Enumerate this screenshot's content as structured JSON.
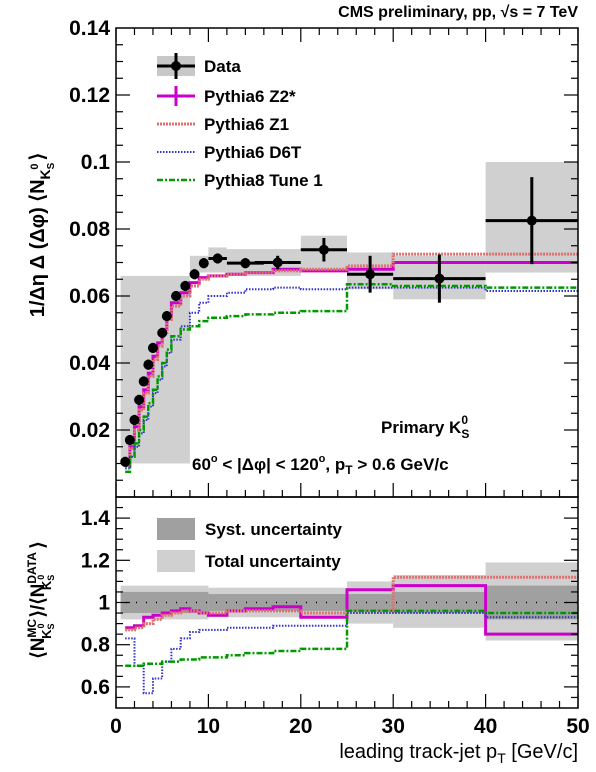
{
  "header": {
    "left": "CMS preliminary, pp, ",
    "sqrt": "√s",
    "right": " = 7 TeV"
  },
  "top_panel": {
    "ylabel": "1/Δη Δ (Δφ) ⟨N",
    "ylabel_sub": "K",
    "ylabel_sub2": "S",
    "ylabel_sup": "0",
    "ylabel_end": "⟩",
    "annotation_primary": "Primary K",
    "annotation_primary_sub": "S",
    "annotation_primary_sup": "0",
    "annotation_cut_1": "60",
    "annotation_cut_deg": "o",
    "annotation_cut_2": " < |Δφ| < 120",
    "annotation_cut_3": ", p",
    "annotation_cut_pt_sub": "T",
    "annotation_cut_4": " > 0.6 GeV/c",
    "legend": [
      "Data",
      "Pythia6 Z2*",
      "Pythia6 Z1",
      "Pythia6 D6T",
      "Pythia8 Tune 1"
    ]
  },
  "bottom_panel": {
    "ylabel_open": "⟨N",
    "ylabel_mc": "MC",
    "ylabel_k": "K",
    "ylabel_s": "S",
    "ylabel_zero": "0",
    "ylabel_mid": "⟩/⟨N",
    "ylabel_data": "DATA",
    "ylabel_close": "⟩",
    "legend": [
      "Syst. uncertainty",
      "Total uncertainty"
    ]
  },
  "xlabel": "leading track-jet p",
  "xlabel_sub": "T",
  "xlabel_unit": " [GeV/c]",
  "colors": {
    "data": "#000000",
    "z2star": "#cc00cc",
    "z1": "#e07070",
    "d6t": "#3030cc",
    "tune1": "#009900",
    "syst": "#a0a0a0",
    "total": "#d0d0d0"
  },
  "chart_data": [
    {
      "type": "scatter",
      "xlim": [
        0,
        50
      ],
      "ylim": [
        0,
        0.14
      ],
      "yticks": [
        "0.02",
        "0.04",
        "0.06",
        "0.08",
        "0.1",
        "0.12",
        "0.14"
      ],
      "ytick_values": [
        0.02,
        0.04,
        0.06,
        0.08,
        0.1,
        0.12,
        0.14
      ],
      "data_points": [
        {
          "x": 1.0,
          "y": 0.0105,
          "xerr": 0.5,
          "yerr": 0.0015
        },
        {
          "x": 1.5,
          "y": 0.017,
          "xerr": 0.25,
          "yerr": 0.0015
        },
        {
          "x": 2.0,
          "y": 0.023,
          "xerr": 0.25,
          "yerr": 0.0015
        },
        {
          "x": 2.5,
          "y": 0.029,
          "xerr": 0.25,
          "yerr": 0.0015
        },
        {
          "x": 3.0,
          "y": 0.0345,
          "xerr": 0.25,
          "yerr": 0.0015
        },
        {
          "x": 3.5,
          "y": 0.0395,
          "xerr": 0.25,
          "yerr": 0.0015
        },
        {
          "x": 4.0,
          "y": 0.0445,
          "xerr": 0.25,
          "yerr": 0.0015
        },
        {
          "x": 5.0,
          "y": 0.049,
          "xerr": 0.5,
          "yerr": 0.0015
        },
        {
          "x": 5.5,
          "y": 0.054,
          "xerr": 0.5,
          "yerr": 0.0015
        },
        {
          "x": 6.5,
          "y": 0.06,
          "xerr": 0.5,
          "yerr": 0.0015
        },
        {
          "x": 7.5,
          "y": 0.063,
          "xerr": 0.5,
          "yerr": 0.0015
        },
        {
          "x": 8.5,
          "y": 0.0665,
          "xerr": 0.5,
          "yerr": 0.0015
        },
        {
          "x": 9.5,
          "y": 0.0698,
          "xerr": 0.5,
          "yerr": 0.0015
        },
        {
          "x": 11.0,
          "y": 0.0712,
          "xerr": 1.0,
          "yerr": 0.0015
        },
        {
          "x": 14.0,
          "y": 0.0698,
          "xerr": 2.0,
          "yerr": 0.0015
        },
        {
          "x": 17.5,
          "y": 0.07,
          "xerr": 2.5,
          "yerr": 0.002
        },
        {
          "x": 22.5,
          "y": 0.0738,
          "xerr": 2.5,
          "yerr": 0.0035
        },
        {
          "x": 27.5,
          "y": 0.0665,
          "xerr": 2.5,
          "yerr": 0.0055
        },
        {
          "x": 35.0,
          "y": 0.0652,
          "xerr": 5.0,
          "yerr": 0.0072
        },
        {
          "x": 45.0,
          "y": 0.0825,
          "xerr": 5.0,
          "yerr": 0.013
        }
      ],
      "total_band": [
        {
          "x0": 0.5,
          "x1": 8,
          "y_low": 0.01,
          "y_high": 0.066
        },
        {
          "x0": 8,
          "x1": 10,
          "y_low": 0.067,
          "y_high": 0.072
        },
        {
          "x0": 10,
          "x1": 12,
          "y_low": 0.067,
          "y_high": 0.0745
        },
        {
          "x0": 12,
          "x1": 20,
          "y_low": 0.066,
          "y_high": 0.074
        },
        {
          "x0": 20,
          "x1": 25,
          "y_low": 0.068,
          "y_high": 0.078
        },
        {
          "x0": 25,
          "x1": 30,
          "y_low": 0.062,
          "y_high": 0.073
        },
        {
          "x0": 30,
          "x1": 40,
          "y_low": 0.059,
          "y_high": 0.072
        },
        {
          "x0": 40,
          "x1": 50,
          "y_low": 0.067,
          "y_high": 0.1
        }
      ],
      "series": [
        {
          "name": "Pythia6 Z2*",
          "x": [
            1,
            1.5,
            2,
            2.5,
            3,
            3.5,
            4,
            4.5,
            5,
            5.5,
            6,
            7,
            8,
            9,
            10,
            12,
            14,
            17,
            20,
            25,
            30,
            40,
            50
          ],
          "values": [
            0.0095,
            0.015,
            0.021,
            0.027,
            0.032,
            0.037,
            0.042,
            0.046,
            0.05,
            0.054,
            0.058,
            0.061,
            0.064,
            0.0655,
            0.066,
            0.0665,
            0.067,
            0.068,
            0.0675,
            0.068,
            0.07,
            0.07,
            0.07
          ]
        },
        {
          "name": "Pythia6 Z1",
          "x": [
            1,
            1.5,
            2,
            2.5,
            3,
            3.5,
            4,
            4.5,
            5,
            5.5,
            6,
            7,
            8,
            9,
            10,
            12,
            14,
            17,
            20,
            25,
            30,
            40,
            50
          ],
          "values": [
            0.0092,
            0.0145,
            0.02,
            0.026,
            0.031,
            0.036,
            0.041,
            0.045,
            0.049,
            0.053,
            0.057,
            0.06,
            0.063,
            0.065,
            0.066,
            0.0665,
            0.067,
            0.0675,
            0.068,
            0.069,
            0.0725,
            0.0725,
            0.0725
          ]
        },
        {
          "name": "Pythia6 D6T",
          "x": [
            1,
            1.5,
            2,
            2.5,
            3,
            3.5,
            4,
            4.5,
            5,
            5.5,
            6,
            7,
            8,
            9,
            10,
            12,
            14,
            17,
            20,
            25,
            30,
            40,
            50
          ],
          "values": [
            0.0085,
            0.012,
            0.015,
            0.019,
            0.023,
            0.027,
            0.031,
            0.035,
            0.039,
            0.043,
            0.047,
            0.051,
            0.055,
            0.058,
            0.06,
            0.061,
            0.062,
            0.0625,
            0.062,
            0.0625,
            0.0625,
            0.0615,
            0.061
          ]
        },
        {
          "name": "Pythia8 Tune 1",
          "x": [
            1,
            1.5,
            2,
            2.5,
            3,
            3.5,
            4,
            4.5,
            5,
            5.5,
            6,
            7,
            8,
            9,
            10,
            12,
            14,
            17,
            20,
            25,
            30,
            40,
            50
          ],
          "values": [
            0.0075,
            0.012,
            0.016,
            0.02,
            0.024,
            0.028,
            0.032,
            0.036,
            0.04,
            0.044,
            0.048,
            0.05,
            0.051,
            0.0525,
            0.0535,
            0.054,
            0.0545,
            0.055,
            0.0555,
            0.0635,
            0.063,
            0.0625,
            0.063
          ]
        }
      ]
    },
    {
      "type": "line",
      "xlim": [
        0,
        50
      ],
      "ylim": [
        0.5,
        1.5
      ],
      "yticks": [
        "0.6",
        "0.8",
        "1",
        "1.2",
        "1.4"
      ],
      "ytick_values": [
        0.6,
        0.8,
        1.0,
        1.2,
        1.4
      ],
      "xticks": [
        "0",
        "10",
        "20",
        "30",
        "40",
        "50"
      ],
      "xtick_values": [
        0,
        10,
        20,
        30,
        40,
        50
      ],
      "reference_line": 1.0,
      "syst_band": [
        {
          "x0": 0.5,
          "x1": 10,
          "y_low": 0.95,
          "y_high": 1.05
        },
        {
          "x0": 10,
          "x1": 30,
          "y_low": 0.96,
          "y_high": 1.04
        },
        {
          "x0": 30,
          "x1": 40,
          "y_low": 0.95,
          "y_high": 1.05
        },
        {
          "x0": 40,
          "x1": 50,
          "y_low": 0.92,
          "y_high": 1.08
        }
      ],
      "total_band": [
        {
          "x0": 0.5,
          "x1": 10,
          "y_low": 0.92,
          "y_high": 1.08
        },
        {
          "x0": 10,
          "x1": 25,
          "y_low": 0.93,
          "y_high": 1.07
        },
        {
          "x0": 25,
          "x1": 30,
          "y_low": 0.9,
          "y_high": 1.1
        },
        {
          "x0": 30,
          "x1": 40,
          "y_low": 0.88,
          "y_high": 1.13
        },
        {
          "x0": 40,
          "x1": 50,
          "y_low": 0.82,
          "y_high": 1.19
        }
      ],
      "series": [
        {
          "name": "Pythia6 Z2*",
          "x": [
            1,
            2,
            3,
            4,
            5,
            6,
            7,
            8,
            9,
            10,
            12,
            14,
            17,
            20,
            25,
            30,
            40,
            50
          ],
          "values": [
            0.88,
            0.89,
            0.93,
            0.94,
            0.95,
            0.96,
            0.97,
            0.96,
            0.95,
            0.94,
            0.96,
            0.97,
            0.98,
            0.93,
            1.06,
            1.08,
            0.85,
            0.85
          ]
        },
        {
          "name": "Pythia6 Z1",
          "x": [
            1,
            2,
            3,
            4,
            5,
            6,
            7,
            8,
            9,
            10,
            12,
            14,
            17,
            20,
            25,
            30,
            40,
            50
          ],
          "values": [
            0.87,
            0.88,
            0.9,
            0.92,
            0.94,
            0.95,
            0.96,
            0.96,
            0.95,
            0.95,
            0.96,
            0.96,
            0.96,
            0.95,
            0.96,
            1.12,
            1.12,
            1.11
          ]
        },
        {
          "name": "Pythia6 D6T",
          "x": [
            1,
            2,
            3,
            4,
            5,
            6,
            7,
            8,
            9,
            10,
            12,
            14,
            17,
            20,
            25,
            30,
            40,
            50
          ],
          "values": [
            0.83,
            0.7,
            0.57,
            0.64,
            0.72,
            0.78,
            0.83,
            0.86,
            0.87,
            0.87,
            0.88,
            0.88,
            0.89,
            0.89,
            0.95,
            0.95,
            0.93,
            0.9
          ]
        },
        {
          "name": "Pythia8 Tune 1",
          "x": [
            1,
            2,
            3,
            4,
            5,
            6,
            7,
            8,
            9,
            10,
            12,
            14,
            17,
            20,
            25,
            30,
            40,
            50
          ],
          "values": [
            0.7,
            0.7,
            0.71,
            0.71,
            0.72,
            0.72,
            0.73,
            0.73,
            0.74,
            0.74,
            0.75,
            0.76,
            0.77,
            0.78,
            0.96,
            0.96,
            0.95,
            0.95
          ]
        }
      ]
    }
  ]
}
